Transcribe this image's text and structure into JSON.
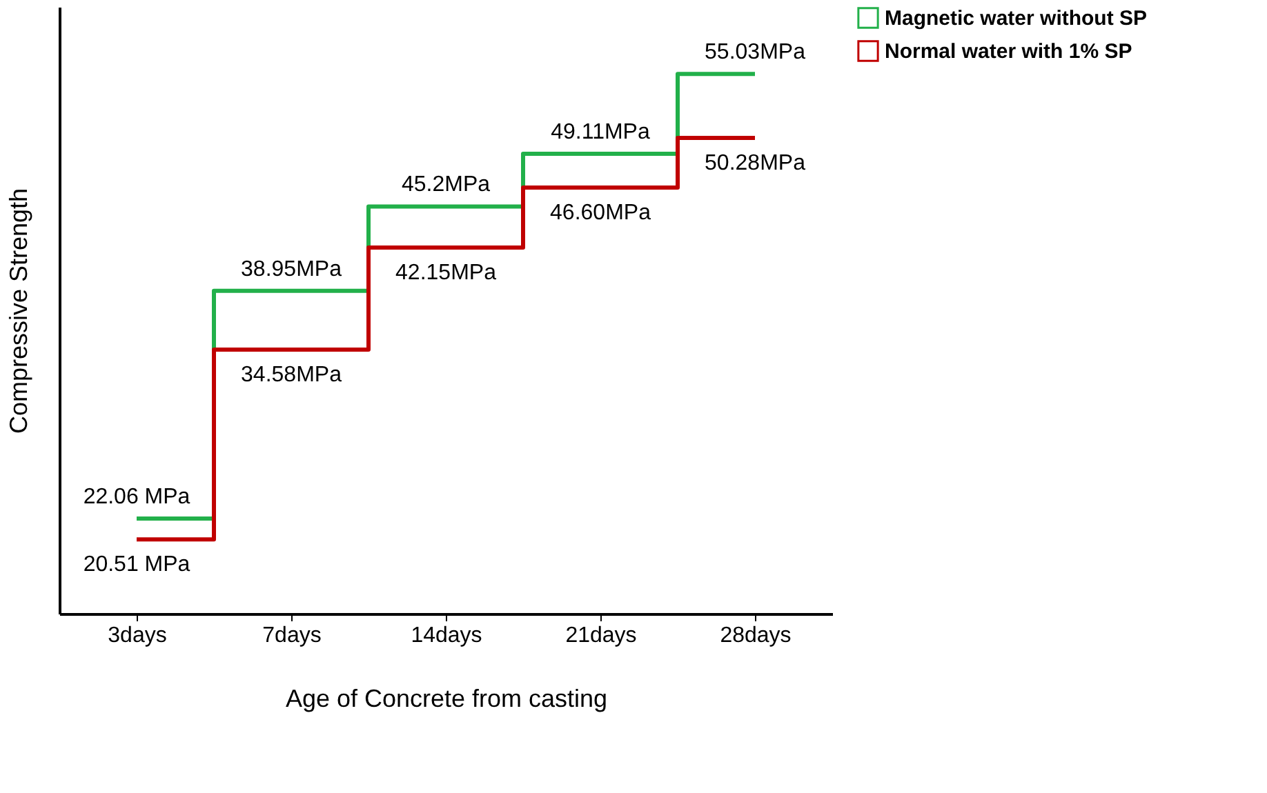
{
  "chart_data": {
    "type": "step",
    "xlabel": "Age of Concrete from casting",
    "ylabel": "Compressive Strength",
    "categories": [
      "3days",
      "7days",
      "14days",
      "21days",
      "28days"
    ],
    "series": [
      {
        "name": "Magnetic water without SP",
        "color": "#22b04a",
        "values": [
          22.06,
          38.95,
          45.2,
          49.11,
          55.03
        ],
        "value_labels": [
          "22.06 MPa",
          "38.95MPa",
          "45.2MPa",
          "49.11MPa",
          "55.03MPa"
        ]
      },
      {
        "name": "Normal water with 1% SP",
        "color": "#c00000",
        "values": [
          20.51,
          34.58,
          42.15,
          46.6,
          50.28
        ],
        "value_labels": [
          "20.51 MPa",
          "34.58MPa",
          "42.15MPa",
          "46.60MPa",
          "50.28MPa"
        ]
      }
    ],
    "legend": "top right",
    "grid": false,
    "tick_labels": "x",
    "marker": "none",
    "line_style": "solid"
  }
}
